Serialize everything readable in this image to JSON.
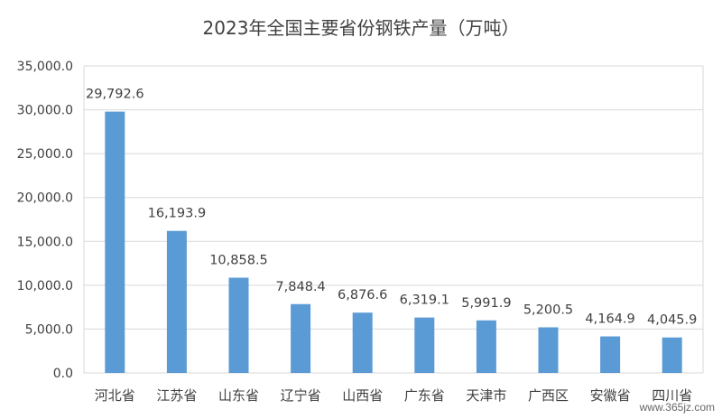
{
  "chart_data": {
    "type": "bar",
    "title": "2023年全国主要省份钢铁产量（万吨）",
    "xlabel": "",
    "ylabel": "",
    "categories": [
      "河北省",
      "江苏省",
      "山东省",
      "辽宁省",
      "山西省",
      "广东省",
      "天津市",
      "广西区",
      "安徽省",
      "四川省"
    ],
    "values": [
      29792.6,
      16193.9,
      10858.5,
      7848.4,
      6876.6,
      6319.1,
      5991.9,
      5200.5,
      4164.9,
      4045.9
    ],
    "data_labels": [
      "29,792.6",
      "16,193.9",
      "10,858.5",
      "7,848.4",
      "6,876.6",
      "6,319.1",
      "5,991.9",
      "5,200.5",
      "4,164.9",
      "4,045.9"
    ],
    "ylim": [
      0,
      35000
    ],
    "y_ticks": [
      0,
      5000,
      10000,
      15000,
      20000,
      25000,
      30000,
      35000
    ],
    "y_tick_labels": [
      "0.0",
      "5,000.0",
      "10,000.0",
      "15,000.0",
      "20,000.0",
      "25,000.0",
      "30,000.0",
      "35,000.0"
    ],
    "grid": true,
    "legend": "none",
    "bar_color": "#5B9BD5"
  },
  "watermark": "www.365jz.com"
}
